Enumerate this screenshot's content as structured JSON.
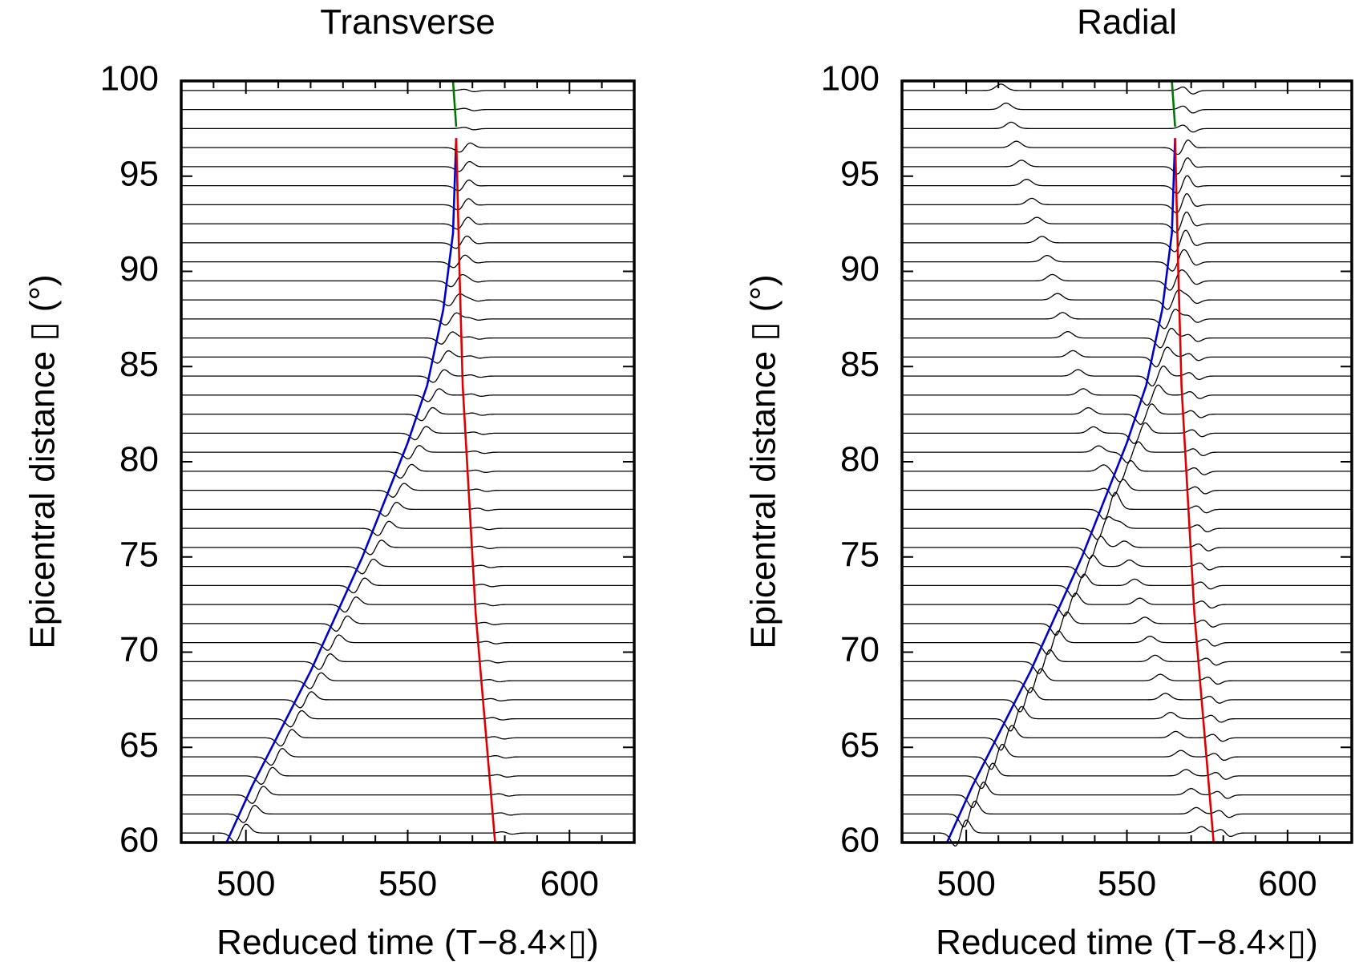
{
  "chart_data": [
    {
      "type": "line",
      "title": "Transverse",
      "xlabel": "Reduced time (T−8.4×▯)",
      "ylabel": "Epicentral distance ▯ (°)",
      "xlim": [
        480,
        620
      ],
      "ylim": [
        60,
        100
      ],
      "xticks": [
        500,
        550,
        600
      ],
      "xtick_labels": [
        "500",
        "550",
        "600"
      ],
      "yticks": [
        60,
        65,
        70,
        75,
        80,
        85,
        90,
        95,
        100
      ],
      "ytick_labels": [
        "60",
        "65",
        "70",
        "75",
        "80",
        "85",
        "90",
        "95",
        "100"
      ],
      "trace_distances": [
        60.5,
        61.5,
        62.5,
        63.5,
        64.5,
        65.5,
        66.5,
        67.5,
        68.5,
        69.5,
        70.5,
        71.5,
        72.5,
        73.5,
        74.5,
        75.5,
        76.5,
        77.5,
        78.5,
        79.5,
        80.5,
        81.5,
        82.5,
        83.5,
        84.5,
        85.5,
        86.5,
        87.5,
        88.5,
        89.5,
        90.5,
        91.5,
        92.5,
        93.5,
        94.5,
        95.5,
        96.5,
        97.5,
        98.5,
        99.5
      ],
      "series": [
        {
          "color": "#0000cc",
          "x": [
            494,
            502,
            511,
            520,
            528,
            536,
            543,
            550,
            556,
            561,
            564,
            565
          ],
          "y": [
            60,
            63,
            66,
            69,
            72,
            75,
            78,
            81,
            84,
            88,
            92,
            97
          ]
        },
        {
          "color": "#dd0000",
          "x": [
            565,
            566,
            567,
            569,
            571,
            574,
            577
          ],
          "y": [
            97,
            90,
            84,
            78,
            72,
            66,
            60
          ]
        },
        {
          "color": "#007700",
          "x": [
            564,
            565
          ],
          "y": [
            100,
            97.6
          ]
        }
      ]
    },
    {
      "type": "line",
      "title": "Radial",
      "xlabel": "Reduced time (T−8.4×▯)",
      "ylabel": "Epicentral distance ▯ (°)",
      "xlim": [
        480,
        620
      ],
      "ylim": [
        60,
        100
      ],
      "xticks": [
        500,
        550,
        600
      ],
      "xtick_labels": [
        "500",
        "550",
        "600"
      ],
      "yticks": [
        60,
        65,
        70,
        75,
        80,
        85,
        90,
        95,
        100
      ],
      "ytick_labels": [
        "60",
        "65",
        "70",
        "75",
        "80",
        "85",
        "90",
        "95",
        "100"
      ],
      "trace_distances": [
        60.5,
        61.5,
        62.5,
        63.5,
        64.5,
        65.5,
        66.5,
        67.5,
        68.5,
        69.5,
        70.5,
        71.5,
        72.5,
        73.5,
        74.5,
        75.5,
        76.5,
        77.5,
        78.5,
        79.5,
        80.5,
        81.5,
        82.5,
        83.5,
        84.5,
        85.5,
        86.5,
        87.5,
        88.5,
        89.5,
        90.5,
        91.5,
        92.5,
        93.5,
        94.5,
        95.5,
        96.5,
        97.5,
        98.5,
        99.5
      ],
      "series": [
        {
          "color": "#0000cc",
          "x": [
            494,
            502,
            511,
            520,
            528,
            536,
            543,
            550,
            556,
            561,
            564,
            565
          ],
          "y": [
            60,
            63,
            66,
            69,
            72,
            75,
            78,
            81,
            84,
            88,
            92,
            97
          ]
        },
        {
          "color": "#dd0000",
          "x": [
            565,
            566,
            567,
            569,
            571,
            574,
            577
          ],
          "y": [
            97,
            90,
            84,
            78,
            72,
            66,
            60
          ]
        },
        {
          "color": "#007700",
          "x": [
            564,
            565
          ],
          "y": [
            100,
            97.6
          ]
        }
      ]
    }
  ]
}
